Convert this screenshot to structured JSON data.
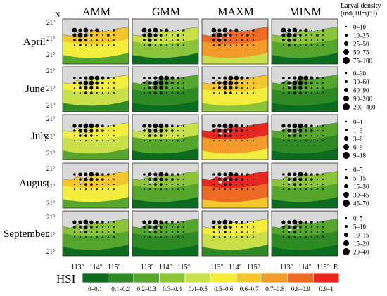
{
  "north_label": "N",
  "east_label": "E",
  "method_headers": [
    "AMM",
    "GMM",
    "MAXM",
    "MINM"
  ],
  "months": [
    "April",
    "June",
    "July",
    "August",
    "September"
  ],
  "lat_tick_label": "21°",
  "lon_tick_labels": [
    "113°",
    "114°",
    "115°"
  ],
  "legend_title": [
    "Larval density",
    "(ind(10m)⁻³)"
  ],
  "density_legends": [
    [
      "0–10",
      "10–25",
      "25–50",
      "50–75",
      "75–100"
    ],
    [
      "0–30",
      "30–60",
      "60–90",
      "90–200",
      "200–400"
    ],
    [
      "0–1",
      "1–3",
      "3–6",
      "6–9",
      "9–18"
    ],
    [
      "0–5",
      "5–15",
      "15–30",
      "30–45",
      "45–70"
    ],
    [
      "0–5",
      "5–10",
      "10–15",
      "15–20",
      "20–40"
    ]
  ],
  "hsi": {
    "label": "HSI",
    "bins": [
      "0–0.1",
      "0.1–0.2",
      "0.2–0.3",
      "0.3–0.4",
      "0.4–0.5",
      "0.5–0.6",
      "0.6–0.7",
      "0.7–0.8",
      "0.8–0.9",
      "0.9–1"
    ],
    "colors": [
      "#0b6b1e",
      "#2f8a26",
      "#56a52d",
      "#8cc439",
      "#c9e04a",
      "#f3ee3e",
      "#f5c72f",
      "#f29a2a",
      "#ee6b26",
      "#e8281f"
    ]
  },
  "land_color": "#d9d9d9",
  "panel_mean_hsi": [
    [
      0.5,
      0.3,
      0.7,
      0.25
    ],
    [
      0.4,
      0.1,
      0.55,
      0.1
    ],
    [
      0.45,
      0.28,
      0.78,
      0.15
    ],
    [
      0.52,
      0.25,
      0.88,
      0.2
    ],
    [
      0.25,
      0.12,
      0.4,
      0.1
    ]
  ]
}
